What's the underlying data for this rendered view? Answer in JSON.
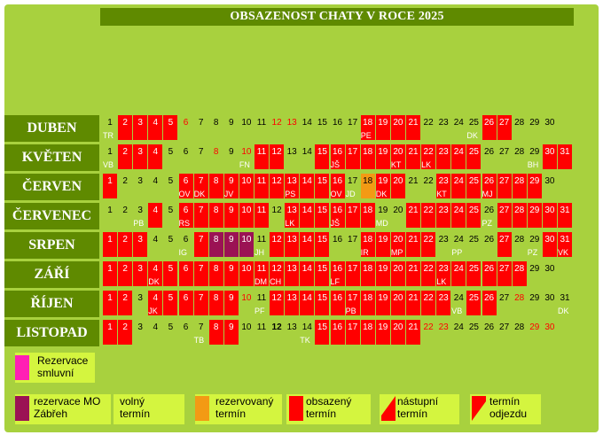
{
  "title": "OBSAZENOST CHATY V ROCE 2025",
  "months": [
    {
      "name": "DUBEN",
      "days": [
        {
          "d": "1",
          "s": "free",
          "c": "TR"
        },
        {
          "d": "2",
          "s": "occupied"
        },
        {
          "d": "3",
          "s": "occupied"
        },
        {
          "d": "4",
          "s": "occupied"
        },
        {
          "d": "5",
          "s": "occupied"
        },
        {
          "d": "6",
          "s": "free",
          "red": true
        },
        {
          "d": "7",
          "s": "free"
        },
        {
          "d": "8",
          "s": "free"
        },
        {
          "d": "9",
          "s": "free"
        },
        {
          "d": "10",
          "s": "free"
        },
        {
          "d": "11",
          "s": "free"
        },
        {
          "d": "12",
          "s": "free",
          "red": true
        },
        {
          "d": "13",
          "s": "free",
          "red": true
        },
        {
          "d": "14",
          "s": "free"
        },
        {
          "d": "15",
          "s": "free"
        },
        {
          "d": "16",
          "s": "free"
        },
        {
          "d": "17",
          "s": "free"
        },
        {
          "d": "18",
          "s": "occupied",
          "c": "PE"
        },
        {
          "d": "19",
          "s": "occupied"
        },
        {
          "d": "20",
          "s": "occupied"
        },
        {
          "d": "21",
          "s": "occupied"
        },
        {
          "d": "22",
          "s": "free"
        },
        {
          "d": "23",
          "s": "free"
        },
        {
          "d": "24",
          "s": "free"
        },
        {
          "d": "25",
          "s": "free",
          "c": "DK"
        },
        {
          "d": "26",
          "s": "occupied"
        },
        {
          "d": "27",
          "s": "occupied"
        },
        {
          "d": "28",
          "s": "free"
        },
        {
          "d": "29",
          "s": "free"
        },
        {
          "d": "30",
          "s": "free"
        }
      ]
    },
    {
      "name": "KVĚTEN",
      "days": [
        {
          "d": "1",
          "s": "free",
          "c": "VB"
        },
        {
          "d": "2",
          "s": "occupied"
        },
        {
          "d": "3",
          "s": "occupied"
        },
        {
          "d": "4",
          "s": "occupied"
        },
        {
          "d": "5",
          "s": "free"
        },
        {
          "d": "6",
          "s": "free"
        },
        {
          "d": "7",
          "s": "free"
        },
        {
          "d": "8",
          "s": "free",
          "red": true
        },
        {
          "d": "9",
          "s": "free"
        },
        {
          "d": "10",
          "s": "free",
          "c": "FN",
          "red": true
        },
        {
          "d": "11",
          "s": "occupied"
        },
        {
          "d": "12",
          "s": "occupied"
        },
        {
          "d": "13",
          "s": "free"
        },
        {
          "d": "14",
          "s": "free"
        },
        {
          "d": "15",
          "s": "occupied"
        },
        {
          "d": "16",
          "s": "occupied",
          "c": "JŠ"
        },
        {
          "d": "17",
          "s": "occupied"
        },
        {
          "d": "18",
          "s": "occupied"
        },
        {
          "d": "19",
          "s": "occupied"
        },
        {
          "d": "20",
          "s": "occupied",
          "c": "KT"
        },
        {
          "d": "21",
          "s": "occupied"
        },
        {
          "d": "22",
          "s": "occupied",
          "c": "LK"
        },
        {
          "d": "23",
          "s": "occupied"
        },
        {
          "d": "24",
          "s": "occupied"
        },
        {
          "d": "25",
          "s": "occupied"
        },
        {
          "d": "26",
          "s": "free"
        },
        {
          "d": "27",
          "s": "free"
        },
        {
          "d": "28",
          "s": "free"
        },
        {
          "d": "29",
          "s": "free",
          "c": "BH"
        },
        {
          "d": "30",
          "s": "occupied"
        },
        {
          "d": "31",
          "s": "occupied"
        }
      ]
    },
    {
      "name": "ČERVEN",
      "days": [
        {
          "d": "1",
          "s": "occupied"
        },
        {
          "d": "2",
          "s": "free"
        },
        {
          "d": "3",
          "s": "free"
        },
        {
          "d": "4",
          "s": "free"
        },
        {
          "d": "5",
          "s": "free"
        },
        {
          "d": "6",
          "s": "occupied",
          "c": "OV"
        },
        {
          "d": "7",
          "s": "occupied",
          "c": "DK"
        },
        {
          "d": "8",
          "s": "occupied"
        },
        {
          "d": "9",
          "s": "occupied",
          "c": "JV"
        },
        {
          "d": "10",
          "s": "occupied"
        },
        {
          "d": "11",
          "s": "occupied"
        },
        {
          "d": "12",
          "s": "occupied"
        },
        {
          "d": "13",
          "s": "occupied",
          "c": "PS"
        },
        {
          "d": "14",
          "s": "occupied"
        },
        {
          "d": "15",
          "s": "occupied"
        },
        {
          "d": "16",
          "s": "occupied",
          "c": "OV"
        },
        {
          "d": "17",
          "s": "free",
          "c": "JD"
        },
        {
          "d": "18",
          "s": "reserved"
        },
        {
          "d": "19",
          "s": "occupied",
          "c": "DK"
        },
        {
          "d": "20",
          "s": "occupied"
        },
        {
          "d": "21",
          "s": "free"
        },
        {
          "d": "22",
          "s": "free"
        },
        {
          "d": "23",
          "s": "occupied",
          "c": "KT"
        },
        {
          "d": "24",
          "s": "occupied"
        },
        {
          "d": "25",
          "s": "occupied"
        },
        {
          "d": "26",
          "s": "occupied",
          "c": "MJ"
        },
        {
          "d": "27",
          "s": "occupied"
        },
        {
          "d": "28",
          "s": "occupied"
        },
        {
          "d": "29",
          "s": "occupied"
        },
        {
          "d": "30",
          "s": "free"
        }
      ]
    },
    {
      "name": "ČERVENEC",
      "days": [
        {
          "d": "1",
          "s": "free"
        },
        {
          "d": "2",
          "s": "free"
        },
        {
          "d": "3",
          "s": "free",
          "c": "PB"
        },
        {
          "d": "4",
          "s": "occupied"
        },
        {
          "d": "5",
          "s": "free"
        },
        {
          "d": "6",
          "s": "occupied",
          "c": "RS"
        },
        {
          "d": "7",
          "s": "occupied"
        },
        {
          "d": "8",
          "s": "occupied"
        },
        {
          "d": "9",
          "s": "occupied"
        },
        {
          "d": "10",
          "s": "occupied"
        },
        {
          "d": "11",
          "s": "occupied"
        },
        {
          "d": "12",
          "s": "free"
        },
        {
          "d": "13",
          "s": "occupied",
          "c": "LK"
        },
        {
          "d": "14",
          "s": "occupied"
        },
        {
          "d": "15",
          "s": "occupied"
        },
        {
          "d": "16",
          "s": "occupied",
          "c": "JŠ"
        },
        {
          "d": "17",
          "s": "occupied"
        },
        {
          "d": "18",
          "s": "occupied"
        },
        {
          "d": "19",
          "s": "free",
          "c": "MD"
        },
        {
          "d": "20",
          "s": "free"
        },
        {
          "d": "21",
          "s": "occupied"
        },
        {
          "d": "22",
          "s": "occupied"
        },
        {
          "d": "23",
          "s": "occupied"
        },
        {
          "d": "24",
          "s": "occupied"
        },
        {
          "d": "25",
          "s": "occupied"
        },
        {
          "d": "26",
          "s": "free",
          "c": "PZ"
        },
        {
          "d": "27",
          "s": "occupied"
        },
        {
          "d": "28",
          "s": "occupied"
        },
        {
          "d": "29",
          "s": "occupied"
        },
        {
          "d": "30",
          "s": "occupied"
        },
        {
          "d": "31",
          "s": "occupied"
        }
      ]
    },
    {
      "name": "SRPEN",
      "days": [
        {
          "d": "1",
          "s": "occupied"
        },
        {
          "d": "2",
          "s": "occupied"
        },
        {
          "d": "3",
          "s": "occupied"
        },
        {
          "d": "4",
          "s": "free"
        },
        {
          "d": "5",
          "s": "free"
        },
        {
          "d": "6",
          "s": "free",
          "c": "IG"
        },
        {
          "d": "7",
          "s": "occupied"
        },
        {
          "d": "8",
          "s": "mo"
        },
        {
          "d": "9",
          "s": "mo"
        },
        {
          "d": "10",
          "s": "mo"
        },
        {
          "d": "11",
          "s": "free",
          "c": "JH"
        },
        {
          "d": "12",
          "s": "occupied"
        },
        {
          "d": "13",
          "s": "occupied"
        },
        {
          "d": "14",
          "s": "occupied"
        },
        {
          "d": "15",
          "s": "occupied"
        },
        {
          "d": "16",
          "s": "free"
        },
        {
          "d": "17",
          "s": "free"
        },
        {
          "d": "18",
          "s": "occupied",
          "c": "IR"
        },
        {
          "d": "19",
          "s": "occupied"
        },
        {
          "d": "20",
          "s": "occupied",
          "c": "MP"
        },
        {
          "d": "21",
          "s": "occupied"
        },
        {
          "d": "22",
          "s": "occupied"
        },
        {
          "d": "23",
          "s": "free"
        },
        {
          "d": "24",
          "s": "free",
          "c": "PP"
        },
        {
          "d": "25",
          "s": "free"
        },
        {
          "d": "26",
          "s": "free"
        },
        {
          "d": "27",
          "s": "occupied"
        },
        {
          "d": "28",
          "s": "free"
        },
        {
          "d": "29",
          "s": "free",
          "c": "PZ"
        },
        {
          "d": "30",
          "s": "occupied"
        },
        {
          "d": "31",
          "s": "occupied",
          "c": "VK"
        }
      ]
    },
    {
      "name": "ZÁŘÍ",
      "days": [
        {
          "d": "1",
          "s": "occupied"
        },
        {
          "d": "2",
          "s": "occupied"
        },
        {
          "d": "3",
          "s": "occupied"
        },
        {
          "d": "4",
          "s": "occupied",
          "c": "DK"
        },
        {
          "d": "5",
          "s": "occupied"
        },
        {
          "d": "6",
          "s": "occupied"
        },
        {
          "d": "7",
          "s": "occupied"
        },
        {
          "d": "8",
          "s": "occupied"
        },
        {
          "d": "9",
          "s": "occupied"
        },
        {
          "d": "10",
          "s": "occupied"
        },
        {
          "d": "11",
          "s": "occupied",
          "c": "DM"
        },
        {
          "d": "12",
          "s": "occupied",
          "c": "CH"
        },
        {
          "d": "13",
          "s": "occupied"
        },
        {
          "d": "14",
          "s": "occupied"
        },
        {
          "d": "15",
          "s": "occupied"
        },
        {
          "d": "16",
          "s": "occupied",
          "c": "LF"
        },
        {
          "d": "17",
          "s": "occupied"
        },
        {
          "d": "18",
          "s": "occupied"
        },
        {
          "d": "19",
          "s": "occupied"
        },
        {
          "d": "20",
          "s": "occupied"
        },
        {
          "d": "21",
          "s": "occupied"
        },
        {
          "d": "22",
          "s": "occupied"
        },
        {
          "d": "23",
          "s": "occupied",
          "c": "LK"
        },
        {
          "d": "24",
          "s": "occupied"
        },
        {
          "d": "25",
          "s": "occupied"
        },
        {
          "d": "26",
          "s": "occupied"
        },
        {
          "d": "27",
          "s": "occupied"
        },
        {
          "d": "28",
          "s": "occupied"
        },
        {
          "d": "29",
          "s": "free"
        },
        {
          "d": "30",
          "s": "free"
        }
      ]
    },
    {
      "name": "ŘÍJEN",
      "days": [
        {
          "d": "1",
          "s": "occupied"
        },
        {
          "d": "2",
          "s": "occupied"
        },
        {
          "d": "3",
          "s": "free"
        },
        {
          "d": "4",
          "s": "occupied",
          "c": "JK"
        },
        {
          "d": "5",
          "s": "occupied"
        },
        {
          "d": "6",
          "s": "occupied"
        },
        {
          "d": "7",
          "s": "occupied"
        },
        {
          "d": "8",
          "s": "occupied"
        },
        {
          "d": "9",
          "s": "occupied"
        },
        {
          "d": "10",
          "s": "free",
          "red": true
        },
        {
          "d": "11",
          "s": "free",
          "c": "PF"
        },
        {
          "d": "12",
          "s": "occupied"
        },
        {
          "d": "13",
          "s": "occupied"
        },
        {
          "d": "14",
          "s": "occupied"
        },
        {
          "d": "15",
          "s": "occupied"
        },
        {
          "d": "16",
          "s": "occupied"
        },
        {
          "d": "17",
          "s": "occupied",
          "c": "PB"
        },
        {
          "d": "18",
          "s": "occupied"
        },
        {
          "d": "19",
          "s": "occupied"
        },
        {
          "d": "20",
          "s": "occupied"
        },
        {
          "d": "21",
          "s": "occupied"
        },
        {
          "d": "22",
          "s": "occupied"
        },
        {
          "d": "23",
          "s": "occupied"
        },
        {
          "d": "24",
          "s": "free",
          "c": "VB"
        },
        {
          "d": "25",
          "s": "occupied"
        },
        {
          "d": "26",
          "s": "occupied"
        },
        {
          "d": "27",
          "s": "free"
        },
        {
          "d": "28",
          "s": "free",
          "red": true
        },
        {
          "d": "29",
          "s": "free"
        },
        {
          "d": "30",
          "s": "free"
        },
        {
          "d": "31",
          "s": "free",
          "c": "DK"
        }
      ]
    },
    {
      "name": "LISTOPAD",
      "days": [
        {
          "d": "1",
          "s": "occupied"
        },
        {
          "d": "2",
          "s": "occupied"
        },
        {
          "d": "3",
          "s": "free"
        },
        {
          "d": "4",
          "s": "free"
        },
        {
          "d": "5",
          "s": "free"
        },
        {
          "d": "6",
          "s": "free"
        },
        {
          "d": "7",
          "s": "free",
          "c": "TB"
        },
        {
          "d": "8",
          "s": "occupied"
        },
        {
          "d": "9",
          "s": "occupied"
        },
        {
          "d": "10",
          "s": "free"
        },
        {
          "d": "11",
          "s": "free"
        },
        {
          "d": "12",
          "s": "free",
          "bold": true
        },
        {
          "d": "13",
          "s": "free"
        },
        {
          "d": "14",
          "s": "free",
          "c": "TK"
        },
        {
          "d": "15",
          "s": "occupied"
        },
        {
          "d": "16",
          "s": "occupied"
        },
        {
          "d": "17",
          "s": "occupied"
        },
        {
          "d": "18",
          "s": "occupied"
        },
        {
          "d": "19",
          "s": "occupied"
        },
        {
          "d": "20",
          "s": "occupied"
        },
        {
          "d": "21",
          "s": "occupied"
        },
        {
          "d": "22",
          "s": "free",
          "red": true
        },
        {
          "d": "23",
          "s": "free",
          "red": true
        },
        {
          "d": "24",
          "s": "free"
        },
        {
          "d": "25",
          "s": "free"
        },
        {
          "d": "26",
          "s": "free"
        },
        {
          "d": "27",
          "s": "free"
        },
        {
          "d": "28",
          "s": "free"
        },
        {
          "d": "29",
          "s": "free",
          "red": true
        },
        {
          "d": "30",
          "s": "free",
          "red": true
        }
      ]
    }
  ],
  "legend": {
    "smluvni": "Rezervace smluvní",
    "mo": "rezervace MO Zábřeh",
    "volny": "volný termín",
    "rezervovany": "rezervovaný termín",
    "obsazeny": "obsazený termín",
    "nastupni": "nástupní termín",
    "odjezdu": "termín odjezdu"
  },
  "colors": {
    "panel": "#a8d13e",
    "header": "#5f8a00",
    "occupied": "#ff0000",
    "reserved": "#f39a14",
    "mo": "#9b1254",
    "smluvni": "#ff1fb4"
  }
}
